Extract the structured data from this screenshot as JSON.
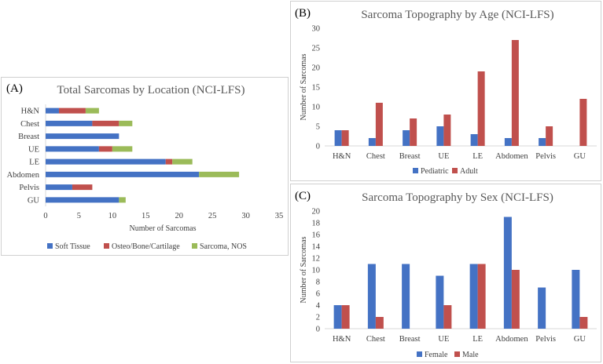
{
  "chart_data": [
    {
      "id": "A",
      "type": "bar",
      "orientation": "horizontal",
      "stacked": true,
      "panel_label": "(A)",
      "title": "Total Sarcomas by Location (NCI-LFS)",
      "xlabel": "Number of Sarcomas",
      "ylabel": "",
      "xlim": [
        0,
        35
      ],
      "xticks": [
        0,
        5,
        10,
        15,
        20,
        25,
        30,
        35
      ],
      "categories": [
        "H&N",
        "Chest",
        "Breast",
        "UE",
        "LE",
        "Abdomen",
        "Pelvis",
        "GU"
      ],
      "series": [
        {
          "name": "Soft Tissue",
          "color": "#4472c4",
          "values": [
            2,
            7,
            11,
            8,
            18,
            23,
            4,
            11
          ]
        },
        {
          "name": "Osteo/Bone/Cartilage",
          "color": "#c0504d",
          "values": [
            4,
            4,
            0,
            2,
            1,
            0,
            3,
            0
          ]
        },
        {
          "name": "Sarcoma, NOS",
          "color": "#9bbb59",
          "values": [
            2,
            2,
            0,
            3,
            3,
            6,
            0,
            1
          ]
        }
      ],
      "legend": "bottom",
      "grid": false
    },
    {
      "id": "B",
      "type": "bar",
      "orientation": "vertical",
      "stacked": false,
      "panel_label": "(B)",
      "title": "Sarcoma Topography by Age (NCI-LFS)",
      "xlabel": "",
      "ylabel": "Number of Sarcomas",
      "ylim": [
        0,
        30
      ],
      "yticks": [
        0,
        5,
        10,
        15,
        20,
        25,
        30
      ],
      "categories": [
        "H&N",
        "Chest",
        "Breast",
        "UE",
        "LE",
        "Abdomen",
        "Pelvis",
        "GU"
      ],
      "series": [
        {
          "name": "Pediatric",
          "color": "#4472c4",
          "values": [
            4,
            2,
            4,
            5,
            3,
            2,
            2,
            0
          ]
        },
        {
          "name": "Adult",
          "color": "#c0504d",
          "values": [
            4,
            11,
            7,
            8,
            19,
            27,
            5,
            12
          ]
        }
      ],
      "legend": "bottom",
      "grid": false
    },
    {
      "id": "C",
      "type": "bar",
      "orientation": "vertical",
      "stacked": false,
      "panel_label": "(C)",
      "title": "Sarcoma Topography by Sex (NCI-LFS)",
      "xlabel": "",
      "ylabel": "Number of Sarcomas",
      "ylim": [
        0,
        20
      ],
      "yticks": [
        0,
        2,
        4,
        6,
        8,
        10,
        12,
        14,
        16,
        18,
        20
      ],
      "categories": [
        "H&N",
        "Chest",
        "Breast",
        "UE",
        "LE",
        "Abdomen",
        "Pelvis",
        "GU"
      ],
      "series": [
        {
          "name": "Female",
          "color": "#4472c4",
          "values": [
            4,
            11,
            11,
            9,
            11,
            19,
            7,
            10
          ]
        },
        {
          "name": "Male",
          "color": "#c0504d",
          "values": [
            4,
            2,
            0,
            4,
            11,
            10,
            0,
            2
          ]
        }
      ],
      "legend": "bottom",
      "grid": false
    }
  ]
}
